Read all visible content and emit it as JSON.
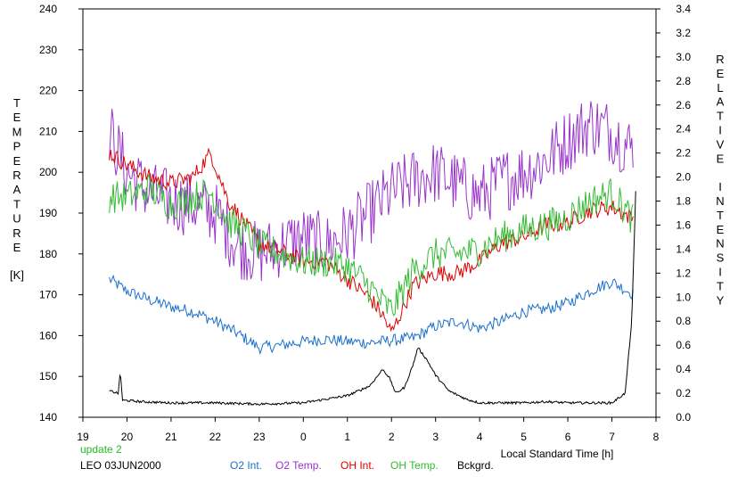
{
  "chart_data": {
    "type": "line",
    "ylabel_left_letters": [
      "T",
      "E",
      "M",
      "P",
      "E",
      "R",
      "A",
      "T",
      "U",
      "R",
      "E"
    ],
    "ylabel_left_unit": "[K]",
    "ylabel_right_letters": [
      "R",
      "E",
      "L",
      "A",
      "T",
      "I",
      "V",
      "E",
      "",
      "I",
      "N",
      "T",
      "E",
      "N",
      "S",
      "I",
      "T",
      "Y"
    ],
    "xlabel": "Local Standard Time [h]",
    "status_text": "update 2",
    "status_color": "#22bb22",
    "station_text": "LEO 03JUN2000",
    "x_range": [
      19,
      32
    ],
    "x_tick_values": [
      19,
      20,
      21,
      22,
      23,
      24,
      25,
      26,
      27,
      28,
      29,
      30,
      31,
      32
    ],
    "x_tick_labels": [
      "19",
      "20",
      "21",
      "22",
      "23",
      "0",
      "1",
      "2",
      "3",
      "4",
      "5",
      "6",
      "7",
      "8"
    ],
    "y_left_range": [
      140,
      240
    ],
    "y_left_ticks": [
      "140",
      "150",
      "160",
      "170",
      "180",
      "190",
      "200",
      "210",
      "220",
      "230",
      "240"
    ],
    "y_right_range": [
      0.0,
      3.4
    ],
    "y_right_ticks": [
      "0.0",
      "0.2",
      "0.4",
      "0.6",
      "0.8",
      "1.0",
      "1.2",
      "1.4",
      "1.6",
      "1.8",
      "2.0",
      "2.2",
      "2.4",
      "2.6",
      "2.8",
      "3.0",
      "3.2",
      "3.4"
    ],
    "grid": false,
    "legend_position": "bottom",
    "series": [
      {
        "name": "O2 Int.",
        "color": "#1a6fcc",
        "axis": "right",
        "noise": 0.05,
        "x": [
          19.6,
          20.0,
          20.5,
          21.0,
          21.5,
          22.0,
          22.5,
          23.0,
          23.5,
          24.0,
          24.5,
          25.0,
          25.5,
          26.0,
          26.5,
          27.0,
          27.5,
          28.0,
          28.5,
          29.0,
          29.5,
          30.0,
          30.5,
          31.0,
          31.5
        ],
        "y": [
          1.15,
          1.05,
          0.98,
          0.92,
          0.88,
          0.8,
          0.7,
          0.58,
          0.6,
          0.63,
          0.65,
          0.63,
          0.62,
          0.64,
          0.66,
          0.76,
          0.8,
          0.74,
          0.8,
          0.88,
          0.9,
          0.95,
          1.05,
          1.13,
          1.02
        ]
      },
      {
        "name": "O2 Temp.",
        "color": "#9933cc",
        "axis": "left",
        "noise": 8,
        "x": [
          19.6,
          20.0,
          20.5,
          21.0,
          21.5,
          22.0,
          22.5,
          23.0,
          23.5,
          24.0,
          24.5,
          25.0,
          25.5,
          26.0,
          26.5,
          27.0,
          27.5,
          28.0,
          28.5,
          29.0,
          29.5,
          30.0,
          30.5,
          31.0,
          31.5
        ],
        "y": [
          210,
          200,
          195,
          193,
          192,
          190,
          182,
          180,
          182,
          184,
          182,
          185,
          190,
          195,
          198,
          200,
          197,
          194,
          198,
          200,
          203,
          208,
          212,
          210,
          205
        ]
      },
      {
        "name": "OH Int.",
        "color": "#dd0000",
        "axis": "right",
        "noise": 0.07,
        "x": [
          19.6,
          20.0,
          20.5,
          21.0,
          21.5,
          21.9,
          22.3,
          22.7,
          23.0,
          23.5,
          24.0,
          24.5,
          25.0,
          25.5,
          25.8,
          26.0,
          26.5,
          27.0,
          27.5,
          28.0,
          28.5,
          29.0,
          29.5,
          30.0,
          30.5,
          31.0,
          31.5
        ],
        "y": [
          2.2,
          2.1,
          2.0,
          1.95,
          2.0,
          2.2,
          1.8,
          1.6,
          1.45,
          1.38,
          1.3,
          1.3,
          1.15,
          1.0,
          0.85,
          0.7,
          1.1,
          1.2,
          1.2,
          1.3,
          1.45,
          1.5,
          1.6,
          1.62,
          1.72,
          1.75,
          1.65
        ]
      },
      {
        "name": "OH Temp.",
        "color": "#33bb33",
        "axis": "left",
        "noise": 4,
        "x": [
          19.6,
          20.0,
          20.5,
          21.0,
          21.5,
          21.9,
          22.3,
          22.7,
          23.0,
          23.5,
          24.0,
          24.5,
          25.0,
          25.5,
          25.8,
          26.0,
          26.5,
          27.0,
          27.5,
          28.0,
          28.5,
          29.0,
          29.5,
          30.0,
          30.5,
          31.0,
          31.5
        ],
        "y": [
          194,
          194,
          196,
          192,
          194,
          195,
          188,
          185,
          182,
          180,
          178,
          178,
          177,
          172,
          168,
          166,
          176,
          180,
          180,
          181,
          184,
          186,
          187,
          189,
          193,
          195,
          188
        ]
      },
      {
        "name": "Bckgrd.",
        "color": "#000000",
        "axis": "right",
        "noise": 0.01,
        "x": [
          19.6,
          19.8,
          19.85,
          19.9,
          20.0,
          20.3,
          21,
          22,
          23,
          24,
          24.5,
          25,
          25.5,
          25.7,
          25.8,
          25.95,
          26.1,
          26.3,
          26.5,
          26.6,
          26.8,
          27.0,
          27.3,
          27.7,
          28,
          28.5,
          29,
          29.5,
          30,
          30.5,
          31,
          31.3,
          31.45,
          31.55
        ],
        "y": [
          0.22,
          0.2,
          0.38,
          0.14,
          0.14,
          0.13,
          0.12,
          0.12,
          0.11,
          0.12,
          0.15,
          0.18,
          0.26,
          0.35,
          0.4,
          0.33,
          0.2,
          0.25,
          0.45,
          0.58,
          0.48,
          0.35,
          0.22,
          0.15,
          0.12,
          0.12,
          0.12,
          0.13,
          0.12,
          0.12,
          0.12,
          0.2,
          0.8,
          2.0
        ]
      }
    ]
  }
}
